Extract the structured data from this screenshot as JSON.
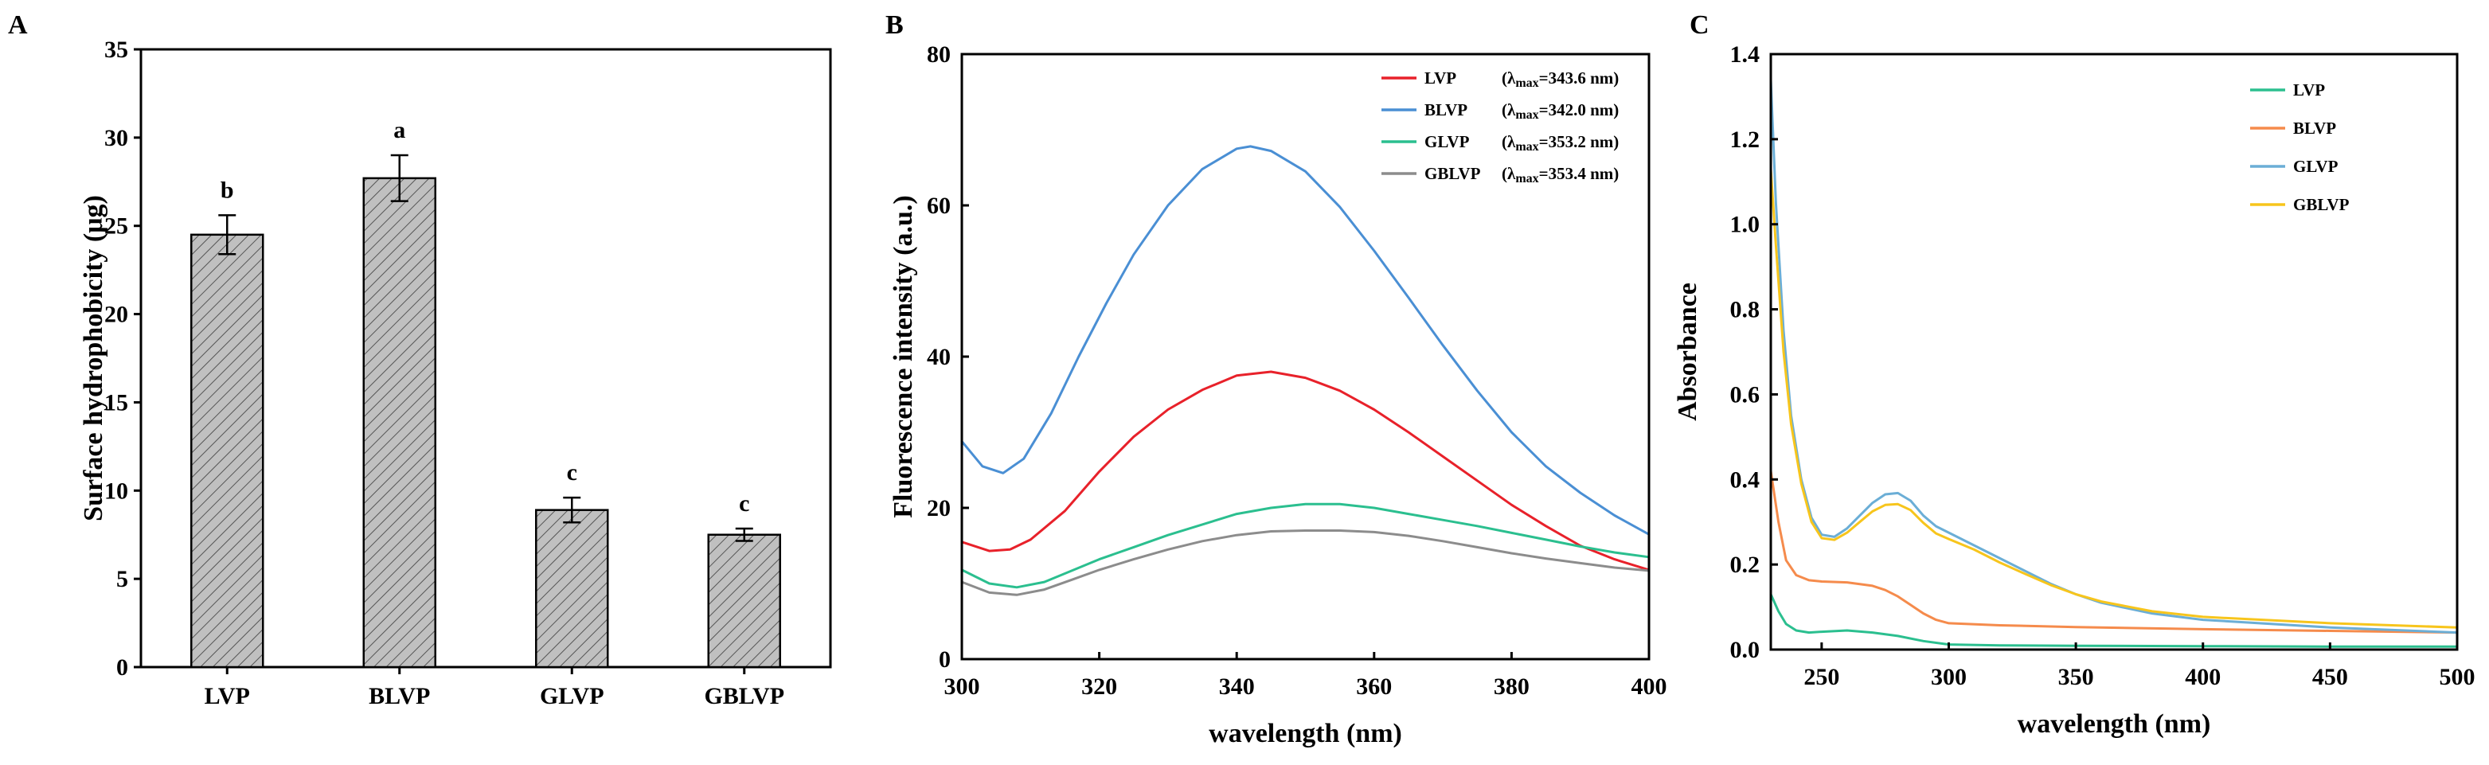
{
  "chart_data": [
    {
      "panel": "A",
      "type": "bar",
      "title": "",
      "xlabel": "",
      "ylabel": "Surface hydrophobicity (μg)",
      "ylim": [
        0,
        35
      ],
      "yticks": [
        0,
        5,
        10,
        15,
        20,
        25,
        30,
        35
      ],
      "categories": [
        "LVP",
        "BLVP",
        "GLVP",
        "GBLVP"
      ],
      "values": [
        24.5,
        27.7,
        8.9,
        7.5
      ],
      "errors": [
        1.1,
        1.3,
        0.7,
        0.35
      ],
      "significance": [
        "b",
        "a",
        "c",
        "c"
      ],
      "bar_color": "#c0c0c0",
      "hatch": "diagonal",
      "grid": false
    },
    {
      "panel": "B",
      "type": "line",
      "title": "",
      "xlabel": "wavelength (nm)",
      "ylabel": "Fluorescence intensity (a.u.)",
      "xlim": [
        300,
        400
      ],
      "ylim": [
        0,
        80
      ],
      "xticks": [
        300,
        320,
        340,
        360,
        380,
        400
      ],
      "yticks": [
        0,
        20,
        40,
        60,
        80
      ],
      "legend_position": "top-right",
      "series": [
        {
          "name": "LVP",
          "annotation_prefix": "(λ",
          "annotation_sub": "max",
          "annotation_value": "=343.6 nm)",
          "color": "#e8212a",
          "x": [
            300,
            304,
            307,
            310,
            315,
            320,
            325,
            330,
            335,
            340,
            345,
            350,
            355,
            360,
            365,
            370,
            375,
            380,
            385,
            390,
            395,
            400
          ],
          "y": [
            15.5,
            14.3,
            14.5,
            15.8,
            19.6,
            24.8,
            29.4,
            33.0,
            35.6,
            37.5,
            38.0,
            37.2,
            35.5,
            33.0,
            30.0,
            26.8,
            23.6,
            20.4,
            17.6,
            15.0,
            13.2,
            11.8
          ]
        },
        {
          "name": "BLVP",
          "annotation_prefix": "(λ",
          "annotation_sub": "max",
          "annotation_value": "=342.0 nm)",
          "color": "#4a8fd4",
          "x": [
            300,
            303,
            306,
            309,
            313,
            317,
            321,
            325,
            330,
            335,
            340,
            342,
            345,
            350,
            355,
            360,
            365,
            370,
            375,
            380,
            385,
            390,
            395,
            400
          ],
          "y": [
            28.8,
            25.5,
            24.6,
            26.5,
            32.5,
            40.0,
            47.0,
            53.5,
            60.0,
            64.8,
            67.5,
            67.8,
            67.2,
            64.5,
            59.8,
            54.0,
            47.8,
            41.5,
            35.5,
            30.0,
            25.5,
            22.0,
            19.0,
            16.5
          ]
        },
        {
          "name": "GLVP",
          "annotation_prefix": "(λ",
          "annotation_sub": "max",
          "annotation_value": "=353.2 nm)",
          "color": "#2bbf8f",
          "x": [
            300,
            304,
            308,
            312,
            316,
            320,
            325,
            330,
            335,
            340,
            345,
            350,
            355,
            360,
            365,
            370,
            375,
            380,
            385,
            390,
            395,
            400
          ],
          "y": [
            11.8,
            10.0,
            9.5,
            10.2,
            11.7,
            13.2,
            14.8,
            16.4,
            17.8,
            19.2,
            20.0,
            20.5,
            20.5,
            20.0,
            19.2,
            18.4,
            17.6,
            16.7,
            15.8,
            14.9,
            14.1,
            13.5
          ]
        },
        {
          "name": "GBLVP",
          "annotation_prefix": "(λ",
          "annotation_sub": "max",
          "annotation_value": "=353.4 nm)",
          "color": "#8c8c8c",
          "x": [
            300,
            304,
            308,
            312,
            316,
            320,
            325,
            330,
            335,
            340,
            345,
            350,
            355,
            360,
            365,
            370,
            375,
            380,
            385,
            390,
            395,
            400
          ],
          "y": [
            10.2,
            8.8,
            8.5,
            9.2,
            10.5,
            11.8,
            13.2,
            14.5,
            15.6,
            16.4,
            16.9,
            17.0,
            17.0,
            16.8,
            16.3,
            15.6,
            14.8,
            14.0,
            13.3,
            12.7,
            12.1,
            11.7
          ]
        }
      ]
    },
    {
      "panel": "C",
      "type": "line",
      "title": "",
      "xlabel": "wavelength (nm)",
      "ylabel": "Absorbance",
      "xlim": [
        230,
        500
      ],
      "ylim": [
        0,
        1.4
      ],
      "xticks": [
        250,
        300,
        350,
        400,
        450,
        500
      ],
      "xtick_labels": [
        "250",
        "300",
        "350",
        "400",
        "450",
        "500"
      ],
      "yticks": [
        0,
        0.2,
        0.4,
        0.6,
        0.8,
        1.0,
        1.2,
        1.4
      ],
      "ytick_labels": [
        "0.0",
        "0.2",
        "0.4",
        "0.6",
        "0.8",
        "1.0",
        "1.2",
        "1.4"
      ],
      "legend_position": "top-right",
      "series": [
        {
          "name": "LVP",
          "color": "#2bbf8f",
          "x": [
            230,
            233,
            236,
            240,
            245,
            250,
            260,
            270,
            280,
            290,
            300,
            320,
            350,
            400,
            450,
            500
          ],
          "y": [
            0.13,
            0.09,
            0.06,
            0.045,
            0.04,
            0.042,
            0.045,
            0.04,
            0.032,
            0.02,
            0.012,
            0.01,
            0.009,
            0.008,
            0.007,
            0.007
          ]
        },
        {
          "name": "BLVP",
          "color": "#f58b4c",
          "x": [
            230,
            233,
            236,
            240,
            245,
            250,
            260,
            270,
            275,
            280,
            285,
            290,
            295,
            300,
            320,
            350,
            400,
            450,
            500
          ],
          "y": [
            0.42,
            0.3,
            0.21,
            0.175,
            0.163,
            0.16,
            0.158,
            0.15,
            0.14,
            0.125,
            0.105,
            0.085,
            0.07,
            0.062,
            0.057,
            0.053,
            0.048,
            0.044,
            0.04
          ]
        },
        {
          "name": "GLVP",
          "color": "#6baed6",
          "x": [
            230,
            232,
            235,
            238,
            242,
            246,
            250,
            255,
            260,
            265,
            270,
            275,
            280,
            285,
            290,
            295,
            300,
            310,
            320,
            330,
            340,
            350,
            360,
            380,
            400,
            450,
            500
          ],
          "y": [
            1.34,
            1.05,
            0.75,
            0.55,
            0.4,
            0.31,
            0.27,
            0.265,
            0.285,
            0.315,
            0.345,
            0.365,
            0.368,
            0.35,
            0.315,
            0.29,
            0.275,
            0.245,
            0.215,
            0.185,
            0.155,
            0.13,
            0.11,
            0.085,
            0.07,
            0.052,
            0.04
          ]
        },
        {
          "name": "GBLVP",
          "color": "#f7c51c",
          "x": [
            230,
            232,
            235,
            238,
            242,
            246,
            250,
            255,
            260,
            265,
            270,
            275,
            280,
            285,
            290,
            295,
            300,
            310,
            320,
            330,
            340,
            350,
            360,
            380,
            400,
            450,
            500
          ],
          "y": [
            1.13,
            0.95,
            0.7,
            0.53,
            0.39,
            0.3,
            0.262,
            0.258,
            0.275,
            0.3,
            0.325,
            0.34,
            0.342,
            0.328,
            0.298,
            0.273,
            0.26,
            0.235,
            0.205,
            0.178,
            0.152,
            0.13,
            0.113,
            0.09,
            0.077,
            0.062,
            0.052
          ]
        }
      ]
    }
  ]
}
